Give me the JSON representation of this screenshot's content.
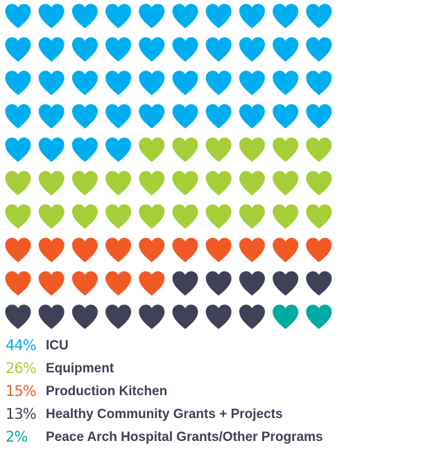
{
  "chart_data": {
    "type": "waffle",
    "grid": {
      "rows": 10,
      "cols": 10
    },
    "series": [
      {
        "name": "ICU",
        "percent_label": "44%",
        "value": 44,
        "color": "#00aeef"
      },
      {
        "name": "Equipment",
        "percent_label": "26%",
        "value": 26,
        "color": "#a6ce39"
      },
      {
        "name": "Production Kitchen",
        "percent_label": "15%",
        "value": 15,
        "color": "#f15a24"
      },
      {
        "name": "Healthy Community Grants + Projects",
        "percent_label": "13%",
        "value": 13,
        "color": "#3f4257"
      },
      {
        "name": "Peace Arch Hospital Grants/Other Programs",
        "percent_label": "2%",
        "value": 2,
        "color": "#00aaa5"
      }
    ],
    "icon": "heart-icon",
    "legend_position": "bottom-left"
  }
}
